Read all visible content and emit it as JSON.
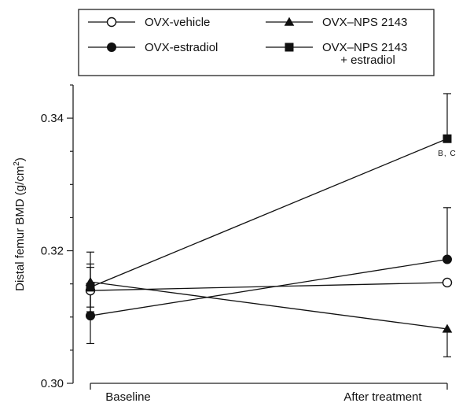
{
  "chart_data": {
    "type": "line",
    "ylabel": "Distal femur BMD (g/cm",
    "ylabel_sup": "2",
    "ylabel_tail": ")",
    "ylim": [
      0.3,
      0.345
    ],
    "y_ticks": [
      0.3,
      0.32,
      0.34
    ],
    "y_tick_labels": [
      "0.30",
      "0.32",
      "0.34"
    ],
    "categories": [
      "Baseline",
      "After treatment"
    ],
    "legend_position": "top (boxed, two columns)",
    "series": [
      {
        "name": "OVX-vehicle",
        "marker": "circle-open",
        "values": [
          0.314,
          0.3152
        ],
        "err": [
          0.004,
          0.0
        ],
        "err_dir": [
          "both",
          "down"
        ]
      },
      {
        "name": "OVX-estradiol",
        "marker": "circle-filled",
        "values": [
          0.3102,
          0.3187
        ],
        "err": [
          0.0042,
          0.0078
        ],
        "err_dir": [
          "both",
          "up"
        ]
      },
      {
        "name": "OVX–NPS 2143",
        "marker": "triangle-filled",
        "values": [
          0.3153,
          0.3082
        ],
        "err": [
          0.0045,
          0.0042
        ],
        "err_dir": [
          "both",
          "down"
        ]
      },
      {
        "name": "OVX–NPS 2143",
        "name_line2": "+ estradiol",
        "marker": "square-filled",
        "values": [
          0.3145,
          0.3369
        ],
        "err": [
          0.003,
          0.0068
        ],
        "err_dir": [
          "both",
          "up"
        ]
      }
    ],
    "annotations": [
      {
        "text": "B, C",
        "series": 3,
        "category": 1
      }
    ]
  }
}
